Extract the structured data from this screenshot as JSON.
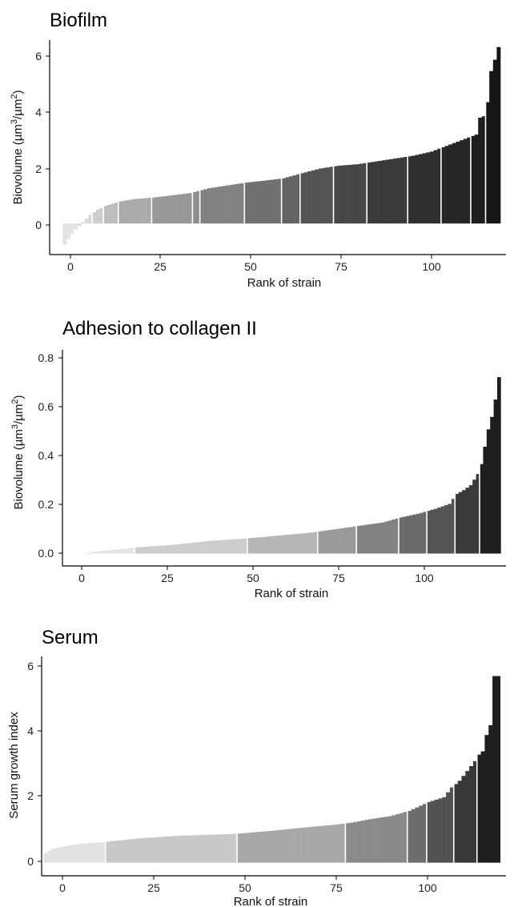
{
  "panels": [
    {
      "title": "Biofilm",
      "xlabel": "Rank of strain",
      "ylabel": "Biovolume (µm",
      "ylabel_sup1": "3",
      "ylabel_mid": "/µm",
      "ylabel_sup2": "2",
      "ylabel_end": ")",
      "x_ticks": [
        "0",
        "25",
        "50",
        "75",
        "100"
      ],
      "y_ticks": [
        "0",
        "2",
        "4",
        "6"
      ]
    },
    {
      "title": "Adhesion to collagen II",
      "xlabel": "Rank of strain",
      "ylabel": "Biovolume (µm",
      "ylabel_sup1": "3",
      "ylabel_mid": "/µm",
      "ylabel_sup2": "2",
      "ylabel_end": ")",
      "x_ticks": [
        "0",
        "25",
        "50",
        "75",
        "100"
      ],
      "y_ticks": [
        "0.0",
        "0.2",
        "0.4",
        "0.6",
        "0.8"
      ]
    },
    {
      "title": "Serum",
      "xlabel": "Rank of strain",
      "ylabel": "Serum growth index",
      "x_ticks": [
        "0",
        "25",
        "50",
        "75",
        "100"
      ],
      "y_ticks": [
        "0",
        "2",
        "4",
        "6"
      ]
    }
  ],
  "chart_data": [
    {
      "type": "bar",
      "title": "Biofilm",
      "xlabel": "Rank of strain",
      "ylabel": "Biovolume (µm3/µm2)",
      "xlim": [
        -3,
        120
      ],
      "ylim": [
        -1.1,
        6.5
      ],
      "n": 118,
      "anchors": [
        [
          1,
          -0.75
        ],
        [
          3,
          -0.35
        ],
        [
          6,
          0.05
        ],
        [
          8,
          0.3
        ],
        [
          10,
          0.5
        ],
        [
          12,
          0.62
        ],
        [
          16,
          0.78
        ],
        [
          20,
          0.87
        ],
        [
          25,
          0.92
        ],
        [
          30,
          1.0
        ],
        [
          35,
          1.08
        ],
        [
          40,
          1.25
        ],
        [
          45,
          1.35
        ],
        [
          50,
          1.45
        ],
        [
          55,
          1.52
        ],
        [
          60,
          1.6
        ],
        [
          65,
          1.78
        ],
        [
          70,
          1.95
        ],
        [
          75,
          2.05
        ],
        [
          80,
          2.1
        ],
        [
          85,
          2.2
        ],
        [
          90,
          2.3
        ],
        [
          95,
          2.4
        ],
        [
          100,
          2.55
        ],
        [
          105,
          2.8
        ],
        [
          110,
          3.05
        ],
        [
          112,
          3.15
        ],
        [
          113,
          3.75
        ],
        [
          114,
          3.8
        ],
        [
          115,
          4.3
        ],
        [
          116,
          5.4
        ],
        [
          117,
          5.8
        ],
        [
          118,
          6.25
        ]
      ],
      "color_groups": [
        [
          1,
          4,
          "#e4e4e4"
        ],
        [
          5,
          8,
          "#d8d8d8"
        ],
        [
          9,
          11,
          "#cdcdcd"
        ],
        [
          12,
          15,
          "#bdbdbd"
        ],
        [
          16,
          24,
          "#ababab"
        ],
        [
          25,
          35,
          "#989898"
        ],
        [
          36,
          37,
          "#8e8e8e"
        ],
        [
          38,
          49,
          "#828282"
        ],
        [
          50,
          59,
          "#707070"
        ],
        [
          60,
          64,
          "#646464"
        ],
        [
          65,
          73,
          "#545454"
        ],
        [
          74,
          82,
          "#474747"
        ],
        [
          83,
          93,
          "#3a3a3a"
        ],
        [
          94,
          102,
          "#303030"
        ],
        [
          103,
          110,
          "#262626"
        ],
        [
          111,
          114,
          "#1e1e1e"
        ],
        [
          115,
          118,
          "#161616"
        ]
      ]
    },
    {
      "type": "bar",
      "title": "Adhesion to collagen II",
      "xlabel": "Rank of strain",
      "ylabel": "Biovolume (µm3/µm2)",
      "xlim": [
        -6,
        120
      ],
      "ylim": [
        -0.05,
        0.82
      ],
      "n": 118,
      "anchors": [
        [
          1,
          0.003
        ],
        [
          5,
          0.01
        ],
        [
          10,
          0.017
        ],
        [
          15,
          0.025
        ],
        [
          20,
          0.03
        ],
        [
          25,
          0.035
        ],
        [
          30,
          0.042
        ],
        [
          35,
          0.05
        ],
        [
          40,
          0.055
        ],
        [
          45,
          0.06
        ],
        [
          50,
          0.065
        ],
        [
          55,
          0.072
        ],
        [
          60,
          0.078
        ],
        [
          65,
          0.085
        ],
        [
          70,
          0.095
        ],
        [
          75,
          0.105
        ],
        [
          80,
          0.115
        ],
        [
          85,
          0.125
        ],
        [
          90,
          0.145
        ],
        [
          95,
          0.16
        ],
        [
          100,
          0.18
        ],
        [
          104,
          0.2
        ],
        [
          106,
          0.24
        ],
        [
          108,
          0.255
        ],
        [
          110,
          0.275
        ],
        [
          112,
          0.32
        ],
        [
          113,
          0.36
        ],
        [
          114,
          0.43
        ],
        [
          115,
          0.5
        ],
        [
          116,
          0.55
        ],
        [
          117,
          0.62
        ],
        [
          118,
          0.71
        ]
      ],
      "color_groups": [
        [
          1,
          14,
          "#e4e4e4"
        ],
        [
          15,
          46,
          "#cdcdcd"
        ],
        [
          47,
          66,
          "#b6b6b6"
        ],
        [
          67,
          77,
          "#9a9a9a"
        ],
        [
          78,
          89,
          "#828282"
        ],
        [
          90,
          97,
          "#6a6a6a"
        ],
        [
          98,
          105,
          "#545454"
        ],
        [
          106,
          112,
          "#3a3a3a"
        ],
        [
          113,
          118,
          "#1e1e1e"
        ]
      ]
    },
    {
      "type": "bar",
      "title": "Serum",
      "xlabel": "Rank of strain",
      "ylabel": "Serum growth index",
      "xlim": [
        0,
        120
      ],
      "ylim": [
        -0.4,
        6.3
      ],
      "n": 118,
      "anchors": [
        [
          1,
          0.3
        ],
        [
          3,
          0.42
        ],
        [
          6,
          0.5
        ],
        [
          10,
          0.58
        ],
        [
          16,
          0.63
        ],
        [
          20,
          0.68
        ],
        [
          25,
          0.74
        ],
        [
          30,
          0.78
        ],
        [
          35,
          0.82
        ],
        [
          40,
          0.84
        ],
        [
          45,
          0.86
        ],
        [
          50,
          0.88
        ],
        [
          55,
          0.93
        ],
        [
          60,
          0.98
        ],
        [
          65,
          1.04
        ],
        [
          70,
          1.1
        ],
        [
          75,
          1.15
        ],
        [
          80,
          1.22
        ],
        [
          85,
          1.33
        ],
        [
          90,
          1.42
        ],
        [
          95,
          1.58
        ],
        [
          100,
          1.85
        ],
        [
          104,
          2.0
        ],
        [
          106,
          2.3
        ],
        [
          108,
          2.5
        ],
        [
          110,
          2.8
        ],
        [
          112,
          3.1
        ],
        [
          113,
          3.3
        ],
        [
          114,
          3.4
        ],
        [
          115,
          3.9
        ],
        [
          116,
          4.2
        ],
        [
          117,
          5.7
        ],
        [
          118,
          5.7
        ]
      ],
      "color_groups": [
        [
          1,
          16,
          "#e2e2e2"
        ],
        [
          17,
          50,
          "#c8c8c8"
        ],
        [
          51,
          78,
          "#a8a8a8"
        ],
        [
          79,
          94,
          "#8a8a8a"
        ],
        [
          95,
          99,
          "#6c6c6c"
        ],
        [
          100,
          106,
          "#525252"
        ],
        [
          107,
          112,
          "#383838"
        ],
        [
          113,
          118,
          "#1e1e1e"
        ]
      ]
    }
  ]
}
